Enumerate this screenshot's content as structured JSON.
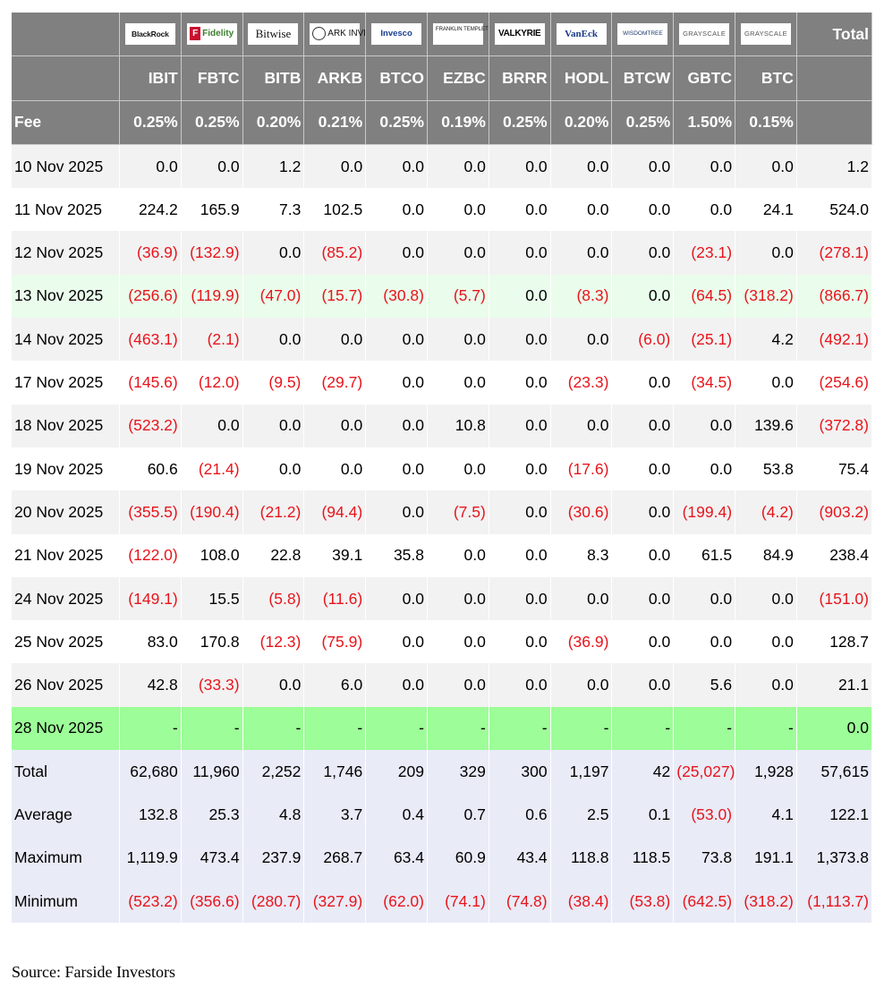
{
  "header": {
    "total_label": "Total",
    "fee_label": "Fee",
    "issuers": [
      {
        "logo_text": "BlackRock",
        "icon": "blackrock-logo"
      },
      {
        "logo_text": "Fidelity",
        "icon": "fidelity-logo"
      },
      {
        "logo_text": "Bitwise",
        "icon": "bitwise-logo"
      },
      {
        "logo_text": "ARK INVEST",
        "icon": "ark-invest-logo"
      },
      {
        "logo_text": "Invesco",
        "icon": "invesco-logo"
      },
      {
        "logo_text": "FRANKLIN TEMPLETON",
        "icon": "franklin-templeton-logo"
      },
      {
        "logo_text": "VALKYRIE",
        "icon": "valkyrie-logo"
      },
      {
        "logo_text": "VanEck",
        "icon": "vaneck-logo"
      },
      {
        "logo_text": "WISDOMTREE",
        "icon": "wisdomtree-logo"
      },
      {
        "logo_text": "GRAYSCALE",
        "icon": "grayscale-logo"
      },
      {
        "logo_text": "GRAYSCALE",
        "icon": "grayscale-logo"
      }
    ],
    "tickers": [
      "IBIT",
      "FBTC",
      "BITB",
      "ARKB",
      "BTCO",
      "EZBC",
      "BRRR",
      "HODL",
      "BTCW",
      "GBTC",
      "BTC"
    ],
    "fees": [
      "0.25%",
      "0.25%",
      "0.20%",
      "0.21%",
      "0.25%",
      "0.19%",
      "0.25%",
      "0.20%",
      "0.25%",
      "1.50%",
      "0.15%"
    ]
  },
  "rows": [
    {
      "date": "10 Nov 2025",
      "style": "alt",
      "values": [
        "0.0",
        "0.0",
        "1.2",
        "0.0",
        "0.0",
        "0.0",
        "0.0",
        "0.0",
        "0.0",
        "0.0",
        "0.0"
      ],
      "total": "1.2"
    },
    {
      "date": "11 Nov 2025",
      "style": "plain",
      "values": [
        "224.2",
        "165.9",
        "7.3",
        "102.5",
        "0.0",
        "0.0",
        "0.0",
        "0.0",
        "0.0",
        "0.0",
        "24.1"
      ],
      "total": "524.0"
    },
    {
      "date": "12 Nov 2025",
      "style": "alt",
      "values": [
        "(36.9)",
        "(132.9)",
        "0.0",
        "(85.2)",
        "0.0",
        "0.0",
        "0.0",
        "0.0",
        "0.0",
        "(23.1)",
        "0.0"
      ],
      "total": "(278.1)"
    },
    {
      "date": "13 Nov 2025",
      "style": "hl",
      "values": [
        "(256.6)",
        "(119.9)",
        "(47.0)",
        "(15.7)",
        "(30.8)",
        "(5.7)",
        "0.0",
        "(8.3)",
        "0.0",
        "(64.5)",
        "(318.2)"
      ],
      "total": "(866.7)"
    },
    {
      "date": "14 Nov 2025",
      "style": "alt",
      "values": [
        "(463.1)",
        "(2.1)",
        "0.0",
        "0.0",
        "0.0",
        "0.0",
        "0.0",
        "0.0",
        "(6.0)",
        "(25.1)",
        "4.2"
      ],
      "total": "(492.1)"
    },
    {
      "date": "17 Nov 2025",
      "style": "plain",
      "values": [
        "(145.6)",
        "(12.0)",
        "(9.5)",
        "(29.7)",
        "0.0",
        "0.0",
        "0.0",
        "(23.3)",
        "0.0",
        "(34.5)",
        "0.0"
      ],
      "total": "(254.6)"
    },
    {
      "date": "18 Nov 2025",
      "style": "alt",
      "values": [
        "(523.2)",
        "0.0",
        "0.0",
        "0.0",
        "0.0",
        "10.8",
        "0.0",
        "0.0",
        "0.0",
        "0.0",
        "139.6"
      ],
      "total": "(372.8)"
    },
    {
      "date": "19 Nov 2025",
      "style": "plain",
      "values": [
        "60.6",
        "(21.4)",
        "0.0",
        "0.0",
        "0.0",
        "0.0",
        "0.0",
        "(17.6)",
        "0.0",
        "0.0",
        "53.8"
      ],
      "total": "75.4"
    },
    {
      "date": "20 Nov 2025",
      "style": "alt",
      "values": [
        "(355.5)",
        "(190.4)",
        "(21.2)",
        "(94.4)",
        "0.0",
        "(7.5)",
        "0.0",
        "(30.6)",
        "0.0",
        "(199.4)",
        "(4.2)"
      ],
      "total": "(903.2)"
    },
    {
      "date": "21 Nov 2025",
      "style": "plain",
      "values": [
        "(122.0)",
        "108.0",
        "22.8",
        "39.1",
        "35.8",
        "0.0",
        "0.0",
        "8.3",
        "0.0",
        "61.5",
        "84.9"
      ],
      "total": "238.4"
    },
    {
      "date": "24 Nov 2025",
      "style": "alt",
      "values": [
        "(149.1)",
        "15.5",
        "(5.8)",
        "(11.6)",
        "0.0",
        "0.0",
        "0.0",
        "0.0",
        "0.0",
        "0.0",
        "0.0"
      ],
      "total": "(151.0)"
    },
    {
      "date": "25 Nov 2025",
      "style": "plain",
      "values": [
        "83.0",
        "170.8",
        "(12.3)",
        "(75.9)",
        "0.0",
        "0.0",
        "0.0",
        "(36.9)",
        "0.0",
        "0.0",
        "0.0"
      ],
      "total": "128.7"
    },
    {
      "date": "26 Nov 2025",
      "style": "alt",
      "values": [
        "42.8",
        "(33.3)",
        "0.0",
        "6.0",
        "0.0",
        "0.0",
        "0.0",
        "0.0",
        "0.0",
        "5.6",
        "0.0"
      ],
      "total": "21.1"
    },
    {
      "date": "28 Nov 2025",
      "style": "hl2",
      "values": [
        "-",
        "-",
        "-",
        "-",
        "-",
        "-",
        "-",
        "-",
        "-",
        "-",
        "-"
      ],
      "total": "0.0"
    }
  ],
  "summary": [
    {
      "label": "Total",
      "values": [
        "62,680",
        "11,960",
        "2,252",
        "1,746",
        "209",
        "329",
        "300",
        "1,197",
        "42",
        "(25,027)",
        "1,928"
      ],
      "total": "57,615"
    },
    {
      "label": "Average",
      "values": [
        "132.8",
        "25.3",
        "4.8",
        "3.7",
        "0.4",
        "0.7",
        "0.6",
        "2.5",
        "0.1",
        "(53.0)",
        "4.1"
      ],
      "total": "122.1"
    },
    {
      "label": "Maximum",
      "values": [
        "1,119.9",
        "473.4",
        "237.9",
        "268.7",
        "63.4",
        "60.9",
        "43.4",
        "118.8",
        "118.5",
        "73.8",
        "191.1"
      ],
      "total": "1,373.8"
    },
    {
      "label": "Minimum",
      "values": [
        "(523.2)",
        "(356.6)",
        "(280.7)",
        "(327.9)",
        "(62.0)",
        "(74.1)",
        "(74.8)",
        "(38.4)",
        "(53.8)",
        "(642.5)",
        "(318.2)"
      ],
      "total": "(1,113.7)"
    }
  ],
  "source": "Source: Farside Investors",
  "colors": {
    "header_bg": "#808080",
    "negative": "#e8141b",
    "highlight_row": "#eafceb",
    "highlight_row_2": "#9dfd98",
    "summary_bg": "#e9ebf7"
  }
}
